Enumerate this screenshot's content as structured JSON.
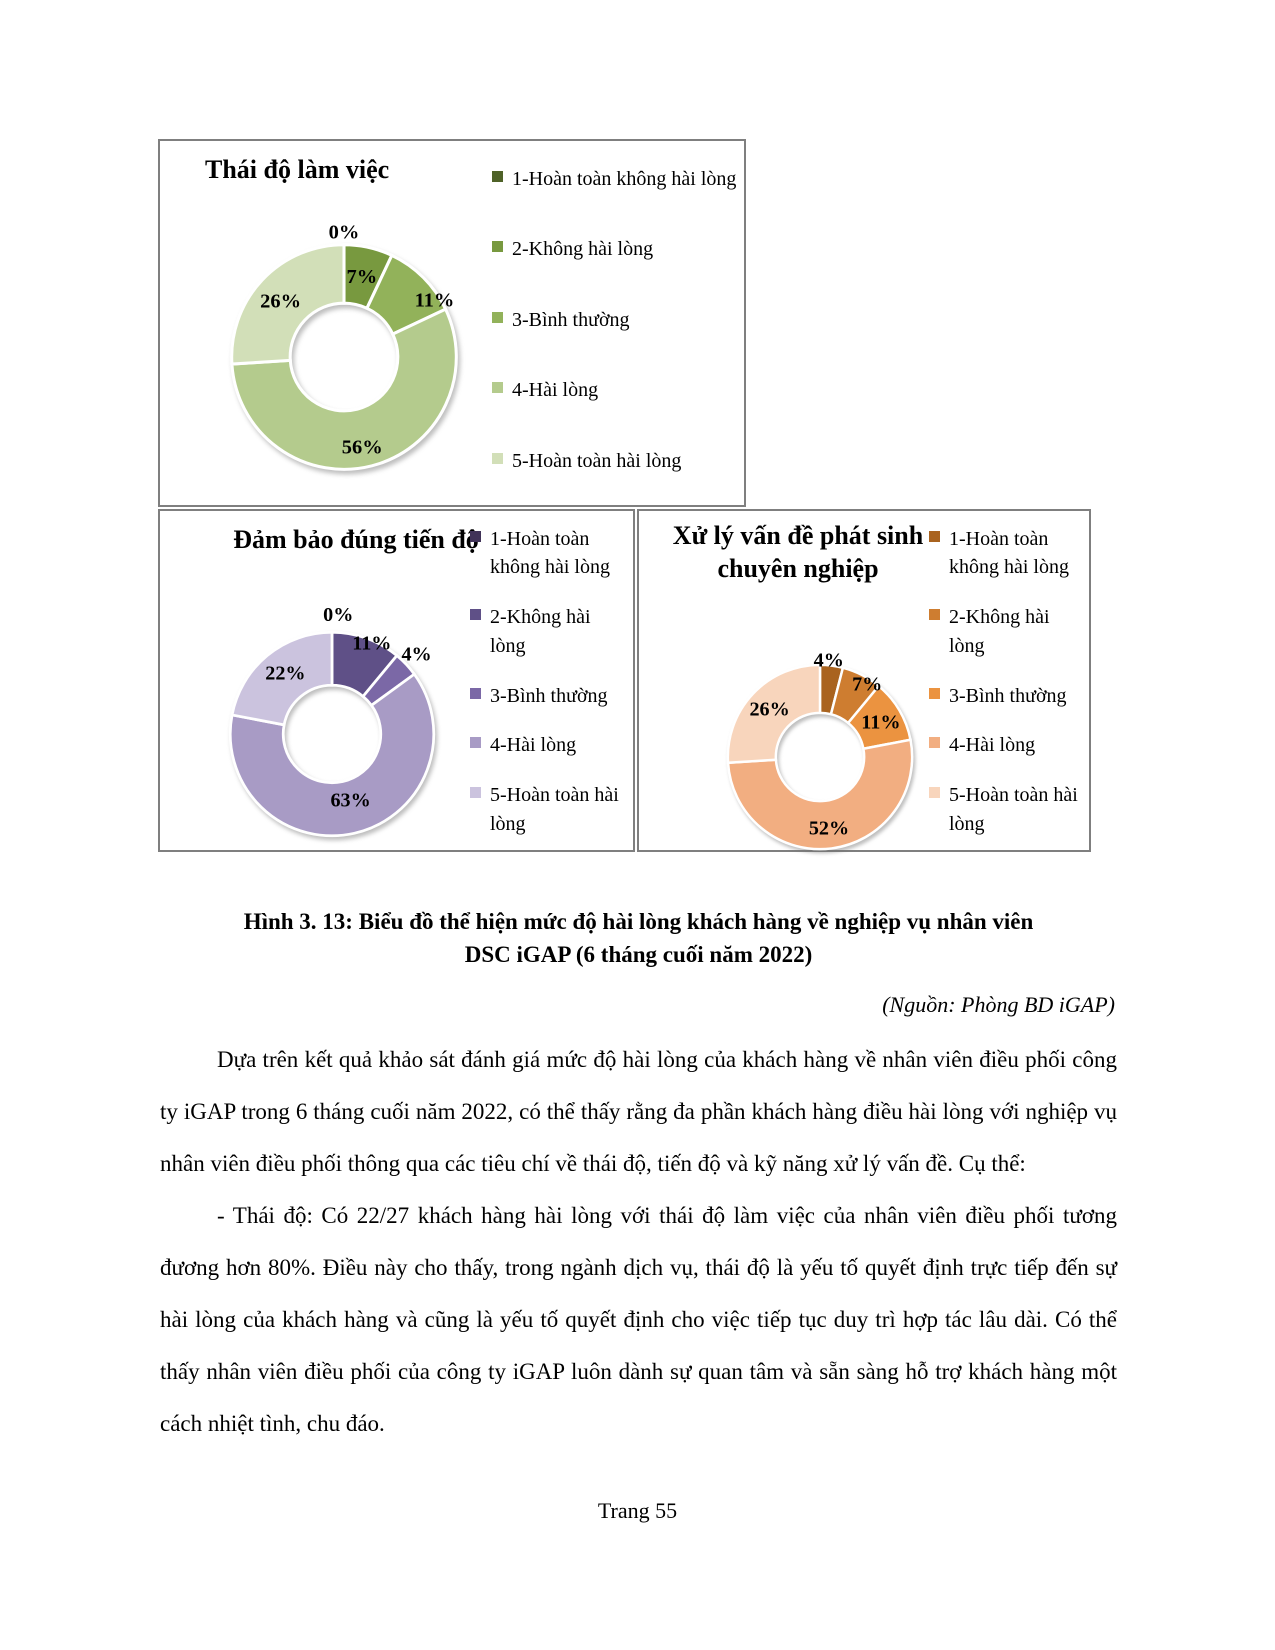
{
  "figure": {
    "caption_line1": "Hình 3. 13: Biểu đồ thể hiện mức độ hài lòng khách hàng về nghiệp vụ nhân viên",
    "caption_line2": "DSC iGAP (6 tháng cuối năm 2022)",
    "source": "(Nguồn: Phòng BD iGAP)"
  },
  "chart_data": [
    {
      "type": "pie",
      "subtype": "donut",
      "title": "Thái độ làm việc",
      "categories": [
        "1-Hoàn toàn không hài lòng",
        "2-Không hài lòng",
        "3-Bình thường",
        "4-Hài lòng",
        "5-Hoàn toàn hài lòng"
      ],
      "values": [
        0,
        7,
        11,
        56,
        26
      ],
      "labels": [
        "0%",
        "7%",
        "11%",
        "56%",
        "26%"
      ],
      "colors": [
        "#4F6228",
        "#78993F",
        "#92B25A",
        "#B4CB8D",
        "#D2DFB8"
      ],
      "legend_position": "right",
      "label_hints": [
        {
          "r": 1.11,
          "a": 0
        },
        {
          "r": 0.73,
          "a": 0
        },
        {
          "r": 0.95,
          "a": 13
        },
        {
          "r": 0.82,
          "a": 3
        },
        {
          "r": 0.75,
          "a": -2
        }
      ]
    },
    {
      "type": "pie",
      "subtype": "donut",
      "title": "Đảm bảo đúng tiến độ",
      "categories": [
        "1-Hoàn toàn không hài lòng",
        "2-Không hài lòng",
        "3-Bình thường",
        "4-Hài lòng",
        "5-Hoàn toàn hài lòng"
      ],
      "values": [
        0,
        11,
        4,
        63,
        22
      ],
      "labels": [
        "0%",
        "11%",
        "4%",
        "63%",
        "22%"
      ],
      "colors": [
        "#413358",
        "#5F5087",
        "#7B68A6",
        "#A89BC5",
        "#CBC3DE"
      ],
      "legend_position": "right",
      "label_hints": [
        {
          "r": 1.17,
          "a": 3
        },
        {
          "r": 0.97,
          "a": 4
        },
        {
          "r": 1.14,
          "a": 0
        },
        {
          "r": 0.68,
          "a": -3
        },
        {
          "r": 0.75,
          "a": 2
        }
      ]
    },
    {
      "type": "pie",
      "subtype": "donut",
      "title": "Xử lý vấn đề phát sinh chuyên nghiệp",
      "categories": [
        "1-Hoàn toàn không hài lòng",
        "2-Không hài lòng",
        "3-Bình thường",
        "4-Hài lòng",
        "5-Hoàn toàn hài lòng"
      ],
      "values": [
        4,
        7,
        11,
        52,
        26
      ],
      "labels": [
        "4%",
        "7%",
        "11%",
        "52%",
        "26%"
      ],
      "colors": [
        "#A9631F",
        "#CE7D30",
        "#EB9340",
        "#F2AE81",
        "#F8D5BC"
      ],
      "legend_position": "right",
      "label_hints": [
        {
          "r": 1.05,
          "a": -2
        },
        {
          "r": 0.94,
          "a": 6
        },
        {
          "r": 0.76,
          "a": 1
        },
        {
          "r": 0.78,
          "a": 0
        },
        {
          "r": 0.75,
          "a": 0
        }
      ]
    }
  ],
  "body": {
    "p1": "Dựa trên kết quả khảo sát đánh giá mức độ hài lòng của khách hàng về nhân viên điều phối công ty iGAP trong 6 tháng cuối năm 2022, có thể thấy rằng đa phần khách hàng điều hài lòng với nghiệp vụ nhân viên điều phối thông qua các tiêu chí về thái độ, tiến độ và kỹ năng xử lý vấn đề. Cụ thể:",
    "p2": "- Thái độ: Có 22/27 khách hàng hài lòng với thái độ làm việc của nhân viên điều phối tương đương hơn 80%. Điều này cho thấy, trong ngành dịch vụ, thái độ là yếu tố quyết định trực tiếp đến sự hài lòng của khách hàng và cũng là yếu tố quyết định cho việc tiếp tục duy trì hợp tác lâu dài. Có thể thấy nhân viên điều phối của công ty iGAP luôn dành sự quan tâm và sẵn sàng hỗ trợ khách hàng một cách nhiệt tình, chu đáo."
  },
  "page": {
    "footer": "Trang 55"
  }
}
